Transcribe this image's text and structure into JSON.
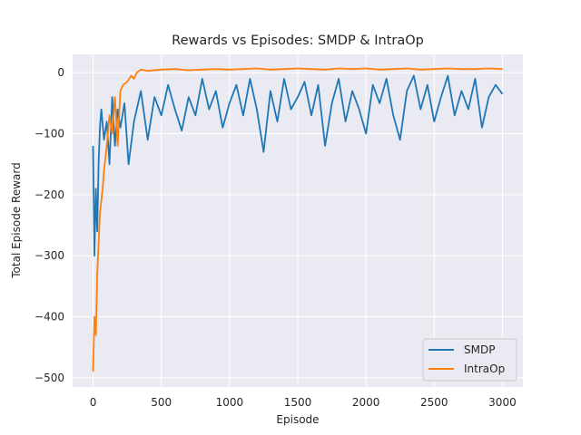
{
  "chart_data": {
    "type": "line",
    "title": "Rewards vs Episodes: SMDP & IntraOp",
    "xlabel": "Episode",
    "ylabel": "Total Episode Reward",
    "xlim": [
      -150,
      3150
    ],
    "ylim": [
      -515,
      30
    ],
    "xticks": [
      0,
      500,
      1000,
      1500,
      2000,
      2500,
      3000
    ],
    "yticks": [
      0,
      -100,
      -200,
      -300,
      -400,
      -500
    ],
    "xtick_labels": [
      "0",
      "500",
      "1000",
      "1500",
      "2000",
      "2500",
      "3000"
    ],
    "ytick_labels": [
      "0",
      "−100",
      "−200",
      "−300",
      "−400",
      "−500"
    ],
    "grid": true,
    "legend_position": "lower-right",
    "background_color": "#eaeaf2",
    "series": [
      {
        "name": "SMDP",
        "color": "#1f77b4",
        "x": [
          0,
          10,
          20,
          30,
          40,
          50,
          60,
          80,
          100,
          120,
          140,
          160,
          180,
          200,
          230,
          260,
          300,
          350,
          400,
          450,
          500,
          550,
          600,
          650,
          700,
          750,
          800,
          850,
          900,
          950,
          1000,
          1050,
          1100,
          1150,
          1200,
          1250,
          1300,
          1350,
          1400,
          1450,
          1500,
          1550,
          1600,
          1650,
          1700,
          1750,
          1800,
          1850,
          1900,
          1950,
          2000,
          2050,
          2100,
          2150,
          2200,
          2250,
          2300,
          2350,
          2400,
          2450,
          2500,
          2550,
          2600,
          2650,
          2700,
          2750,
          2800,
          2850,
          2900,
          2950,
          3000
        ],
        "y": [
          -120,
          -300,
          -190,
          -260,
          -150,
          -90,
          -60,
          -110,
          -80,
          -150,
          -40,
          -120,
          -60,
          -90,
          -50,
          -150,
          -80,
          -30,
          -110,
          -40,
          -70,
          -20,
          -60,
          -95,
          -40,
          -70,
          -10,
          -60,
          -30,
          -90,
          -50,
          -20,
          -70,
          -10,
          -60,
          -130,
          -30,
          -80,
          -10,
          -60,
          -40,
          -15,
          -70,
          -20,
          -120,
          -50,
          -10,
          -80,
          -30,
          -60,
          -100,
          -20,
          -50,
          -10,
          -70,
          -110,
          -30,
          -5,
          -60,
          -20,
          -80,
          -40,
          -5,
          -70,
          -30,
          -60,
          -10,
          -90,
          -40,
          -20,
          -35
        ]
      },
      {
        "name": "IntraOp",
        "color": "#ff7f0e",
        "x": [
          0,
          10,
          20,
          30,
          40,
          50,
          60,
          70,
          80,
          100,
          120,
          140,
          160,
          180,
          200,
          220,
          250,
          280,
          300,
          320,
          350,
          400,
          500,
          600,
          700,
          800,
          900,
          1000,
          1100,
          1200,
          1300,
          1400,
          1500,
          1600,
          1700,
          1800,
          1900,
          2000,
          2100,
          2200,
          2300,
          2400,
          2500,
          2600,
          2700,
          2800,
          2900,
          3000
        ],
        "y": [
          -490,
          -400,
          -430,
          -330,
          -280,
          -230,
          -210,
          -190,
          -160,
          -120,
          -70,
          -100,
          -40,
          -120,
          -30,
          -20,
          -15,
          -5,
          -10,
          0,
          5,
          3,
          5,
          6,
          4,
          5,
          6,
          5,
          6,
          7,
          5,
          6,
          7,
          6,
          5,
          7,
          6,
          7,
          5,
          6,
          7,
          5,
          6,
          7,
          6,
          6,
          7,
          6
        ]
      }
    ]
  }
}
